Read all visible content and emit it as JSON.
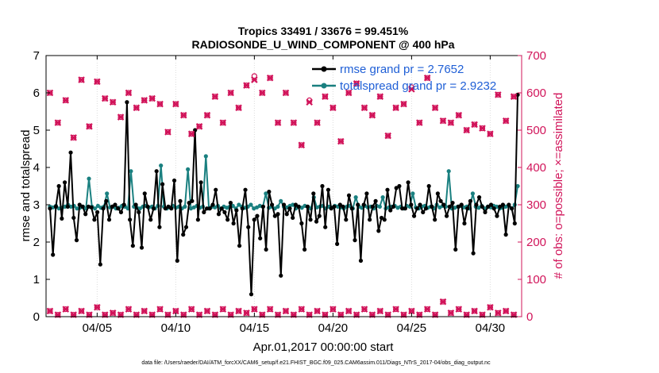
{
  "chart_data": {
    "type": "line",
    "title_line1": "Tropics 33491 / 33676 = 99.451%",
    "title_line2": "RADIOSONDE_U_WIND_COMPONENT @ 400 hPa",
    "xlabel": "Apr.01,2017 00:00:00 start",
    "ylabel_left": "rmse and totalspread",
    "ylabel_right": "# of obs: o=possible; ×=assimilated",
    "footnote": "data file: /Users/raeder/DAI/ATM_forcXX/CAM6_setup/f.e21.FHIST_BGC.f09_025.CAM6assim.011/Diags_NTrS_2017-04/obs_diag_output.nc",
    "x_range_days": [
      0.75,
      31.0
    ],
    "ylim_left": [
      0,
      7
    ],
    "ylim_right": [
      0,
      700
    ],
    "x_tick_days": [
      4,
      9,
      14,
      19,
      24,
      29
    ],
    "x_tick_labels": [
      "04/05",
      "04/10",
      "04/15",
      "04/20",
      "04/25",
      "04/30"
    ],
    "y_ticks_left": [
      "0",
      "1",
      "2",
      "3",
      "4",
      "5",
      "6",
      "7"
    ],
    "y_ticks_right": [
      "0",
      "100",
      "200",
      "300",
      "400",
      "500",
      "600",
      "700"
    ],
    "colors": {
      "rmse": "#000000",
      "spread": "#1a8080",
      "obs": "#d1145a",
      "legend_text": "#1f5fd6"
    },
    "series": [
      {
        "name": "rmse",
        "legend": "rmse grand pr = 2.7652",
        "values": [
          2.9,
          1.66,
          2.95,
          3.5,
          2.63,
          3.6,
          2.95,
          4.4,
          2.65,
          2.05,
          3.0,
          2.95,
          2.75,
          2.95,
          2.93,
          2.6,
          2.8,
          1.4,
          2.9,
          3.1,
          2.6,
          2.95,
          3.0,
          2.9,
          2.8,
          3.0,
          5.75,
          2.6,
          1.9,
          3.0,
          2.8,
          1.85,
          3.3,
          2.95,
          2.6,
          2.9,
          3.9,
          2.4,
          3.55,
          2.9,
          2.95,
          2.9,
          3.65,
          1.5,
          3.1,
          2.2,
          2.4,
          3.05,
          3.1,
          5.0,
          2.6,
          3.6,
          2.8,
          2.9,
          2.9,
          3.0,
          3.4,
          2.75,
          2.9,
          2.8,
          2.6,
          3.05,
          2.5,
          2.85,
          1.9,
          2.9,
          3.4,
          2.4,
          0.6,
          2.6,
          2.7,
          2.1,
          2.95,
          1.8,
          3.35,
          3.0,
          2.7,
          2.75,
          1.1,
          3.0,
          2.75,
          2.9,
          2.65,
          3.0,
          2.95,
          2.5,
          1.8,
          2.95,
          2.6,
          3.3,
          2.55,
          2.7,
          3.5,
          2.4,
          3.4,
          2.9,
          2.95,
          1.95,
          3.0,
          2.95,
          2.6,
          3.25,
          2.9,
          2.05,
          3.0,
          1.5,
          3.0,
          3.3,
          2.6,
          2.95,
          3.1,
          2.3,
          2.65,
          2.6,
          3.4,
          2.85,
          2.95,
          3.45,
          3.5,
          2.9,
          2.9,
          3.6,
          3.0,
          2.7,
          2.9,
          3.0,
          2.8,
          2.9,
          3.5,
          2.95,
          2.6,
          3.3,
          3.1,
          3.0,
          2.7,
          2.95,
          3.05,
          1.8,
          2.95,
          3.0,
          2.5,
          2.9,
          3.1,
          1.7,
          3.0,
          3.2,
          2.95,
          2.8,
          2.95,
          3.0,
          2.9,
          2.7,
          2.95,
          3.0,
          2.2,
          3.0,
          2.9,
          2.5,
          5.95
        ]
      },
      {
        "name": "totalspread",
        "legend": "totalspread grand pr = 2.9232",
        "values": [
          2.95,
          2.93,
          2.97,
          2.9,
          2.92,
          2.95,
          3.0,
          2.95,
          2.97,
          2.9,
          2.92,
          2.95,
          2.9,
          3.7,
          2.95,
          2.9,
          2.97,
          2.92,
          2.95,
          3.3,
          2.93,
          2.95,
          2.9,
          2.92,
          2.97,
          2.95,
          2.9,
          3.9,
          2.95,
          2.92,
          2.9,
          2.95,
          2.97,
          2.93,
          2.95,
          2.9,
          2.97,
          4.05,
          2.95,
          2.9,
          2.93,
          2.97,
          2.92,
          2.95,
          2.9,
          2.95,
          3.95,
          2.9,
          2.93,
          2.97,
          2.92,
          2.95,
          4.3,
          2.9,
          2.95,
          2.93,
          2.97,
          2.9,
          2.95,
          2.92,
          2.95,
          2.97,
          2.9,
          3.0,
          2.95,
          2.92,
          2.95,
          3.0,
          2.9,
          2.93,
          2.97,
          2.95,
          3.3,
          2.92,
          2.95,
          2.9,
          2.95,
          3.1,
          2.95,
          2.93,
          2.97,
          3.0,
          2.9,
          2.95,
          2.92,
          2.97,
          2.95,
          2.9,
          3.2,
          2.93,
          2.95,
          2.97,
          2.9,
          2.95,
          2.92,
          2.97,
          2.95,
          2.93,
          2.9,
          2.95,
          2.97,
          2.9,
          3.2,
          2.95,
          2.92,
          2.97,
          2.93,
          2.95,
          2.9,
          2.97,
          2.95,
          3.2,
          2.9,
          2.93,
          2.95,
          2.97,
          2.92,
          2.95,
          2.9,
          2.97,
          2.95,
          3.3,
          2.93,
          2.9,
          2.95,
          2.97,
          2.92,
          2.95,
          2.9,
          3.0,
          2.93,
          2.97,
          2.95,
          3.9,
          2.9,
          2.92,
          2.95,
          2.97,
          2.93,
          2.95,
          2.9,
          3.3,
          2.95,
          2.92,
          2.97,
          2.9,
          2.95,
          2.93,
          2.97,
          2.95,
          2.9,
          2.92,
          2.95,
          2.97,
          2.9,
          3.0,
          3.5
        ]
      }
    ],
    "obs_possible_upper": [
      [
        1,
        600
      ],
      [
        1.5,
        520
      ],
      [
        2,
        580
      ],
      [
        2.5,
        480
      ],
      [
        3,
        635
      ],
      [
        3.5,
        510
      ],
      [
        4,
        630
      ],
      [
        4.5,
        585
      ],
      [
        5,
        575
      ],
      [
        5.5,
        535
      ],
      [
        6,
        600
      ],
      [
        6.5,
        560
      ],
      [
        7,
        580
      ],
      [
        7.5,
        585
      ],
      [
        8,
        570
      ],
      [
        8.5,
        495
      ],
      [
        9,
        570
      ],
      [
        9.5,
        540
      ],
      [
        10,
        490
      ],
      [
        10.5,
        510
      ],
      [
        11,
        540
      ],
      [
        11.5,
        590
      ],
      [
        12,
        520
      ],
      [
        12.5,
        600
      ],
      [
        13,
        560
      ],
      [
        13.5,
        620
      ],
      [
        14,
        645
      ],
      [
        14.5,
        600
      ],
      [
        15,
        640
      ],
      [
        15.5,
        520
      ],
      [
        16,
        600
      ],
      [
        16.5,
        520
      ],
      [
        17,
        460
      ],
      [
        17.5,
        580
      ],
      [
        18,
        520
      ],
      [
        18.5,
        590
      ],
      [
        19,
        560
      ],
      [
        19.5,
        470
      ],
      [
        20,
        600
      ],
      [
        20.5,
        625
      ],
      [
        21,
        560
      ],
      [
        21.5,
        540
      ],
      [
        22,
        590
      ],
      [
        22.5,
        485
      ],
      [
        23,
        560
      ],
      [
        23.5,
        570
      ],
      [
        24,
        615
      ],
      [
        24.5,
        520
      ],
      [
        25,
        640
      ],
      [
        25.5,
        560
      ],
      [
        26,
        525
      ],
      [
        26.5,
        520
      ],
      [
        27,
        540
      ],
      [
        27.5,
        500
      ],
      [
        28,
        515
      ],
      [
        28.5,
        505
      ],
      [
        29,
        490
      ],
      [
        29.5,
        595
      ],
      [
        30,
        525
      ],
      [
        30.5,
        590
      ]
    ],
    "obs_assim_upper": [
      [
        1,
        600
      ],
      [
        1.5,
        520
      ],
      [
        2,
        580
      ],
      [
        2.5,
        480
      ],
      [
        3,
        635
      ],
      [
        3.5,
        510
      ],
      [
        4,
        630
      ],
      [
        4.5,
        585
      ],
      [
        5,
        575
      ],
      [
        5.5,
        535
      ],
      [
        6,
        600
      ],
      [
        6.5,
        560
      ],
      [
        7,
        580
      ],
      [
        7.5,
        585
      ],
      [
        8,
        570
      ],
      [
        8.5,
        495
      ],
      [
        9,
        570
      ],
      [
        9.5,
        540
      ],
      [
        10,
        490
      ],
      [
        10.5,
        510
      ],
      [
        11,
        540
      ],
      [
        11.5,
        590
      ],
      [
        12,
        520
      ],
      [
        12.5,
        600
      ],
      [
        13,
        560
      ],
      [
        13.5,
        620
      ],
      [
        14,
        635
      ],
      [
        14.5,
        600
      ],
      [
        15,
        640
      ],
      [
        15.5,
        520
      ],
      [
        16,
        600
      ],
      [
        16.5,
        520
      ],
      [
        17,
        460
      ],
      [
        17.5,
        575
      ],
      [
        18,
        520
      ],
      [
        18.5,
        590
      ],
      [
        19,
        560
      ],
      [
        19.5,
        470
      ],
      [
        20,
        600
      ],
      [
        20.5,
        625
      ],
      [
        21,
        560
      ],
      [
        21.5,
        540
      ],
      [
        22,
        590
      ],
      [
        22.5,
        485
      ],
      [
        23,
        560
      ],
      [
        23.5,
        570
      ],
      [
        24,
        610
      ],
      [
        24.5,
        520
      ],
      [
        25,
        640
      ],
      [
        25.5,
        560
      ],
      [
        26,
        525
      ],
      [
        26.5,
        520
      ],
      [
        27,
        540
      ],
      [
        27.5,
        500
      ],
      [
        28,
        515
      ],
      [
        28.5,
        505
      ],
      [
        29,
        490
      ],
      [
        29.5,
        595
      ],
      [
        30,
        525
      ],
      [
        30.5,
        590
      ]
    ],
    "obs_lower": [
      [
        1,
        15
      ],
      [
        1.5,
        5
      ],
      [
        2,
        20
      ],
      [
        2.5,
        5
      ],
      [
        3,
        15
      ],
      [
        3.5,
        5
      ],
      [
        4,
        25
      ],
      [
        4.5,
        5
      ],
      [
        5,
        10
      ],
      [
        5.5,
        5
      ],
      [
        6,
        20
      ],
      [
        6.5,
        5
      ],
      [
        7,
        15
      ],
      [
        7.5,
        5
      ],
      [
        8,
        20
      ],
      [
        8.5,
        5
      ],
      [
        9,
        15
      ],
      [
        9.5,
        5
      ],
      [
        10,
        20
      ],
      [
        10.5,
        5
      ],
      [
        11,
        15
      ],
      [
        11.5,
        5
      ],
      [
        12,
        20
      ],
      [
        12.5,
        5
      ],
      [
        13,
        15
      ],
      [
        13.5,
        10
      ],
      [
        14,
        20
      ],
      [
        14.5,
        5
      ],
      [
        15,
        20
      ],
      [
        15.5,
        5
      ],
      [
        16,
        15
      ],
      [
        16.5,
        5
      ],
      [
        17,
        20
      ],
      [
        17.5,
        5
      ],
      [
        18,
        15
      ],
      [
        18.5,
        5
      ],
      [
        19,
        20
      ],
      [
        19.5,
        5
      ],
      [
        20,
        15
      ],
      [
        20.5,
        5
      ],
      [
        21,
        20
      ],
      [
        21.5,
        5
      ],
      [
        22,
        15
      ],
      [
        22.5,
        5
      ],
      [
        23,
        20
      ],
      [
        23.5,
        5
      ],
      [
        24,
        15
      ],
      [
        24.5,
        5
      ],
      [
        25,
        20
      ],
      [
        25.5,
        5
      ],
      [
        26,
        40
      ],
      [
        26.5,
        10
      ],
      [
        27,
        20
      ],
      [
        27.5,
        5
      ],
      [
        28,
        15
      ],
      [
        28.5,
        5
      ],
      [
        29,
        25
      ],
      [
        29.5,
        10
      ],
      [
        30,
        15
      ],
      [
        30.5,
        5
      ]
    ]
  }
}
